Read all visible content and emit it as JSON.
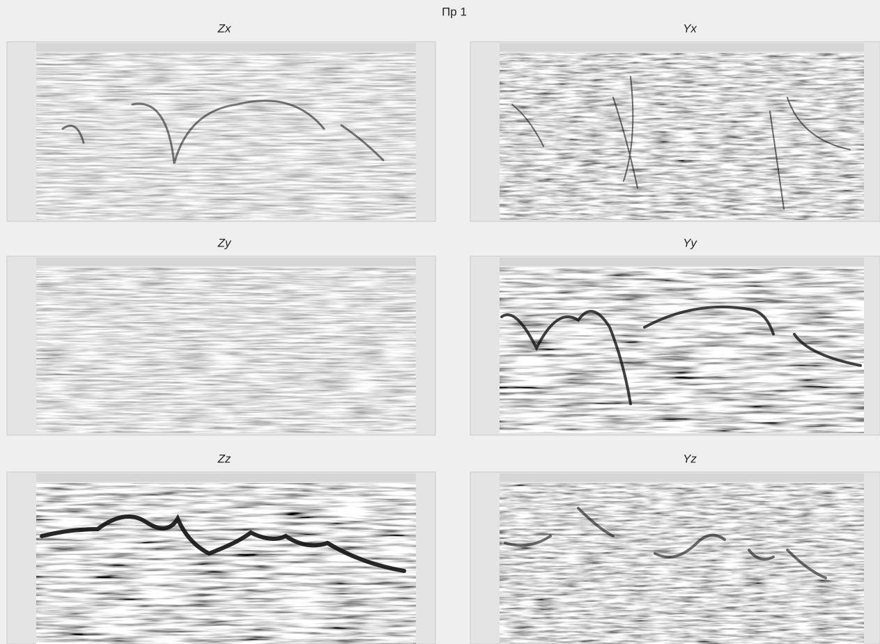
{
  "title": "Пр 1",
  "panels": [
    {
      "label": "Zx"
    },
    {
      "label": "Yx"
    },
    {
      "label": "Zy"
    },
    {
      "label": "Yy"
    },
    {
      "label": "Zz"
    },
    {
      "label": "Yz"
    }
  ]
}
